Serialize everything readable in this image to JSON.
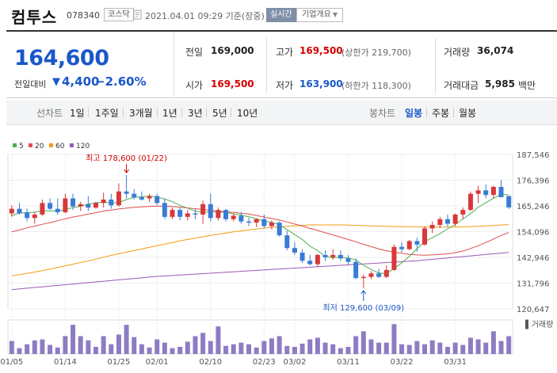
{
  "header": {
    "company": "컴투스",
    "code": "078340",
    "market": "코스닥",
    "timestamp": "2021.04.01 09:29  기준(장중)",
    "realtime_label": "실시간",
    "overview_label": "기업개요"
  },
  "price": {
    "current": "164,600",
    "change_label": "전일대비",
    "change_arrow": "▼",
    "change_value": "4,400",
    "change_pct": "−2.60%"
  },
  "stats": {
    "prev_label": "전일",
    "prev_value": "169,000",
    "open_label": "시가",
    "open_value": "169,500",
    "high_label": "고가",
    "high_value": "169,500",
    "upper_limit": "(상한가 219,700)",
    "low_label": "저가",
    "low_value": "163,900",
    "lower_limit": "(하한가 118,300)",
    "volume_label": "거래량",
    "volume_value": "36,074",
    "amount_label": "거래대금",
    "amount_value": "5,985",
    "amount_unit": "백만"
  },
  "period_tabs": {
    "label": "선차트",
    "items": [
      "1일",
      "1주일",
      "3개월",
      "1년",
      "3년",
      "5년",
      "10년"
    ]
  },
  "candle_tabs": {
    "label": "봉차트",
    "items": [
      "일봉",
      "주봉",
      "월봉"
    ],
    "active": "일봉"
  },
  "colors": {
    "up": "#d9383b",
    "down": "#3a7bd5",
    "ma5": "#4caf50",
    "ma20": "#e34c4c",
    "ma60": "#f39c12",
    "ma120": "#9b59b6",
    "volume": "#8e7cc3",
    "accent": "#1a57c9"
  },
  "chart_data": {
    "type": "candlestick",
    "legend": [
      {
        "name": "5",
        "color": "#4caf50"
      },
      {
        "name": "20",
        "color": "#e34c4c"
      },
      {
        "name": "60",
        "color": "#f39c12"
      },
      {
        "name": "120",
        "color": "#9b59b6"
      }
    ],
    "y_ticks": [
      "187,546",
      "176,396",
      "165,246",
      "154,096",
      "142,946",
      "131,796",
      "120,647"
    ],
    "ylim": [
      120647,
      187546
    ],
    "x_ticks": [
      "01/05",
      "01/14",
      "01/25",
      "02/01",
      "02/10",
      "02/23",
      "03/02",
      "03/11",
      "03/22",
      "03/31"
    ],
    "max_annotation": "최고 178,600 (01/22)",
    "min_annotation": "최저 129,600 (03/09)",
    "volume_label": "거래량",
    "candles": [
      [
        162000,
        165500,
        160500,
        164000
      ],
      [
        164000,
        166500,
        161500,
        162000
      ],
      [
        162500,
        164000,
        158500,
        160000
      ],
      [
        160000,
        162500,
        157500,
        161500
      ],
      [
        161500,
        168000,
        161000,
        166500
      ],
      [
        166500,
        168500,
        163500,
        164000
      ],
      [
        164000,
        168500,
        161500,
        162500
      ],
      [
        162500,
        170500,
        162000,
        168500
      ],
      [
        168500,
        170500,
        163500,
        165000
      ],
      [
        165000,
        167000,
        163000,
        166000
      ],
      [
        166000,
        169500,
        163000,
        164500
      ],
      [
        164500,
        167000,
        164000,
        166500
      ],
      [
        166500,
        171000,
        164500,
        168000
      ],
      [
        168000,
        170500,
        164000,
        165500
      ],
      [
        165500,
        175000,
        165000,
        171500
      ],
      [
        171500,
        178600,
        168500,
        170500
      ],
      [
        170500,
        172500,
        168000,
        169000
      ],
      [
        169000,
        171500,
        167500,
        168000
      ],
      [
        168500,
        170500,
        167000,
        169500
      ],
      [
        169500,
        170500,
        165500,
        166500
      ],
      [
        166500,
        168500,
        159500,
        160500
      ],
      [
        160500,
        164500,
        159500,
        163500
      ],
      [
        163500,
        164500,
        159000,
        160500
      ],
      [
        160500,
        163500,
        159000,
        162000
      ],
      [
        162000,
        164000,
        159500,
        161500
      ],
      [
        161500,
        167500,
        157500,
        166000
      ],
      [
        166000,
        170500,
        158500,
        160000
      ],
      [
        160000,
        164500,
        159000,
        163500
      ],
      [
        163500,
        164000,
        158500,
        159500
      ],
      [
        159500,
        162000,
        158500,
        161000
      ],
      [
        161000,
        162500,
        157500,
        158500
      ],
      [
        158500,
        160000,
        156500,
        158000
      ],
      [
        158000,
        160000,
        156000,
        159500
      ],
      [
        159500,
        161500,
        155500,
        156500
      ],
      [
        156500,
        159000,
        155000,
        158000
      ],
      [
        158000,
        158500,
        152000,
        152500
      ],
      [
        152500,
        154500,
        146000,
        147000
      ],
      [
        147000,
        149500,
        144000,
        145000
      ],
      [
        145000,
        146500,
        140500,
        141500
      ],
      [
        141500,
        144000,
        139500,
        140000
      ],
      [
        140000,
        144500,
        139000,
        144000
      ],
      [
        144000,
        146000,
        141500,
        143000
      ],
      [
        143000,
        146500,
        142000,
        144000
      ],
      [
        144000,
        146000,
        141500,
        142500
      ],
      [
        142500,
        144000,
        140000,
        141000
      ],
      [
        141000,
        142500,
        133500,
        134000
      ],
      [
        134000,
        135500,
        129600,
        134500
      ],
      [
        134500,
        137000,
        133500,
        136000
      ],
      [
        136000,
        138000,
        134000,
        134500
      ],
      [
        134500,
        139500,
        134000,
        137500
      ],
      [
        137500,
        148500,
        137000,
        147500
      ],
      [
        147500,
        149500,
        145000,
        146500
      ],
      [
        146500,
        150500,
        146000,
        150000
      ],
      [
        150000,
        151500,
        145500,
        148500
      ],
      [
        148500,
        156500,
        148000,
        155500
      ],
      [
        155500,
        158500,
        153500,
        157000
      ],
      [
        157000,
        160500,
        155500,
        159500
      ],
      [
        159500,
        161500,
        156000,
        157500
      ],
      [
        157500,
        162000,
        156500,
        161500
      ],
      [
        161500,
        164500,
        159500,
        163500
      ],
      [
        163500,
        171500,
        163000,
        170500
      ],
      [
        170500,
        174000,
        166500,
        172000
      ],
      [
        172000,
        174500,
        168500,
        170000
      ],
      [
        170000,
        174000,
        168500,
        173500
      ],
      [
        173500,
        176400,
        169000,
        169000
      ],
      [
        169500,
        169500,
        163900,
        164600
      ]
    ],
    "volumes": [
      0.4,
      0.18,
      0.3,
      0.42,
      0.45,
      0.28,
      0.2,
      0.55,
      0.9,
      0.55,
      0.42,
      0.22,
      0.55,
      0.3,
      0.6,
      0.9,
      0.52,
      0.3,
      0.2,
      0.45,
      0.35,
      0.18,
      0.22,
      0.38,
      0.55,
      0.65,
      0.4,
      0.85,
      0.25,
      0.3,
      0.35,
      0.3,
      0.2,
      0.4,
      0.48,
      0.55,
      0.25,
      0.22,
      0.32,
      0.45,
      0.5,
      0.35,
      0.3,
      0.18,
      0.22,
      0.55,
      0.7,
      0.45,
      0.35,
      0.35,
      0.92,
      0.3,
      0.28,
      0.4,
      0.3,
      0.42,
      0.35,
      0.22,
      0.35,
      0.28,
      0.5,
      0.45,
      0.35,
      0.7,
      0.4,
      0.55
    ],
    "ma5": [
      161000,
      162200,
      162300,
      162500,
      163200,
      163100,
      163000,
      163700,
      164500,
      165100,
      166000,
      166600,
      166900,
      166600,
      166700,
      168000,
      169000,
      169200,
      169500,
      169100,
      168200,
      167100,
      165500,
      164300,
      162900,
      162400,
      162700,
      162500,
      162500,
      161800,
      161200,
      160500,
      159700,
      158700,
      158100,
      157200,
      155000,
      152800,
      150700,
      147800,
      145900,
      143300,
      142800,
      143000,
      142700,
      141800,
      139500,
      137700,
      136200,
      135900,
      138100,
      140600,
      143400,
      146700,
      149800,
      151500,
      153200,
      155300,
      157200,
      159600,
      161900,
      164700,
      166600,
      168600,
      170300,
      170000
    ],
    "ma20": [
      154000,
      154800,
      155700,
      156500,
      157300,
      158000,
      158800,
      159700,
      160400,
      161000,
      161700,
      162300,
      163000,
      163400,
      163900,
      164300,
      164600,
      164800,
      165000,
      165100,
      165100,
      165000,
      164700,
      164400,
      164000,
      163700,
      163400,
      163000,
      162700,
      162400,
      162100,
      161700,
      161100,
      160400,
      159800,
      159100,
      158300,
      157400,
      156500,
      155500,
      154600,
      153600,
      152700,
      151700,
      150700,
      149700,
      148600,
      147600,
      146600,
      145800,
      145200,
      144700,
      144300,
      144000,
      143900,
      144000,
      144200,
      144500,
      145000,
      145700,
      146800,
      148000,
      149400,
      150900,
      152500,
      153700
    ],
    "ma60": [
      135000,
      135500,
      136000,
      136600,
      137200,
      137900,
      138600,
      139300,
      140000,
      140700,
      141400,
      142200,
      143000,
      143800,
      144500,
      145200,
      145900,
      146600,
      147300,
      148000,
      148700,
      149400,
      150100,
      150700,
      151300,
      151900,
      152500,
      153000,
      153500,
      154000,
      154400,
      154800,
      155200,
      155600,
      156000,
      156200,
      156400,
      156600,
      156800,
      157000,
      157000,
      157000,
      157000,
      157000,
      156900,
      156800,
      156700,
      156600,
      156500,
      156400,
      156300,
      156300,
      156200,
      156200,
      156100,
      156100,
      156100,
      156100,
      156100,
      156200,
      156300,
      156400,
      156600,
      156800,
      157000,
      157100
    ],
    "ma120": [
      129000,
      129300,
      129600,
      129900,
      130200,
      130500,
      130800,
      131100,
      131400,
      131700,
      132000,
      132300,
      132600,
      132900,
      133200,
      133500,
      133800,
      134100,
      134400,
      134700,
      134900,
      135100,
      135300,
      135500,
      135700,
      135900,
      136100,
      136300,
      136500,
      136700,
      136900,
      137100,
      137300,
      137500,
      137700,
      137900,
      138100,
      138300,
      138500,
      138700,
      138900,
      139100,
      139300,
      139500,
      139700,
      139900,
      140100,
      140300,
      140500,
      140700,
      140900,
      141100,
      141300,
      141500,
      141800,
      142100,
      142400,
      142700,
      143000,
      143300,
      143600,
      143900,
      144200,
      144500,
      144800,
      145100
    ]
  }
}
